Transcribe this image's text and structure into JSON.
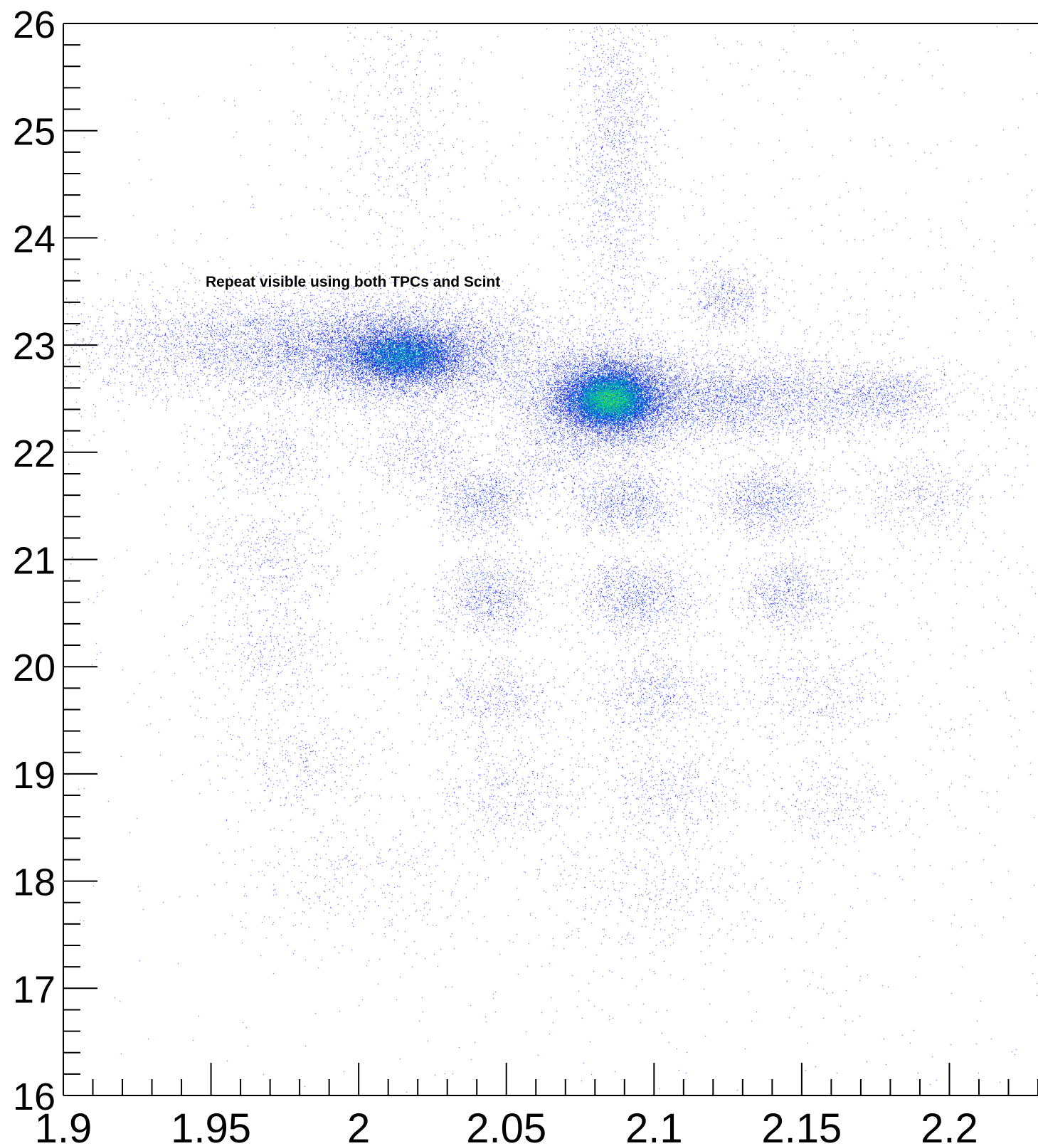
{
  "chart_data": {
    "type": "heatmap",
    "title": "",
    "xlabel": "",
    "ylabel": "",
    "xlim": [
      1.9,
      2.23
    ],
    "ylim": [
      16,
      26
    ],
    "x_ticks": [
      1.9,
      1.95,
      2.0,
      2.05,
      2.1,
      2.15,
      2.2
    ],
    "x_tick_labels": [
      "1.9",
      "1.95",
      "2",
      "2.05",
      "2.1",
      "2.15",
      "2.2"
    ],
    "y_ticks": [
      16,
      17,
      18,
      19,
      20,
      21,
      22,
      23,
      24,
      25,
      26
    ],
    "y_tick_labels": [
      "16",
      "17",
      "18",
      "19",
      "20",
      "21",
      "22",
      "23",
      "24",
      "25",
      "26"
    ],
    "grid": false,
    "annotation": "Repeat visible using both TPCs and Scint",
    "colors": {
      "low": "#6a00e8",
      "mid_low": "#1f2fe0",
      "mid": "#00a0d0",
      "mid_high": "#20e060",
      "high": "#ffd400",
      "peak": "#ff2000",
      "axis": "#000000",
      "background": "#ffffff"
    },
    "clusters": [
      {
        "x": 2.085,
        "y": 22.5,
        "sx": 0.012,
        "sy": 0.22,
        "n": 9000,
        "peak_level": "peak"
      },
      {
        "x": 2.015,
        "y": 22.9,
        "sx": 0.016,
        "sy": 0.2,
        "n": 6000,
        "peak_level": "mid"
      },
      {
        "x": 1.99,
        "y": 23.0,
        "sx": 0.04,
        "sy": 0.25,
        "n": 7000,
        "peak_level": "mid_low"
      },
      {
        "x": 2.12,
        "y": 22.5,
        "sx": 0.035,
        "sy": 0.2,
        "n": 5000,
        "peak_level": "mid_low"
      },
      {
        "x": 2.18,
        "y": 22.55,
        "sx": 0.008,
        "sy": 0.12,
        "n": 500,
        "peak_level": "low"
      },
      {
        "x": 2.125,
        "y": 23.45,
        "sx": 0.007,
        "sy": 0.15,
        "n": 500,
        "peak_level": "low"
      },
      {
        "x": 1.97,
        "y": 22.0,
        "sx": 0.012,
        "sy": 0.2,
        "n": 400,
        "peak_level": "low"
      },
      {
        "x": 2.02,
        "y": 22.0,
        "sx": 0.01,
        "sy": 0.18,
        "n": 450,
        "peak_level": "low"
      },
      {
        "x": 2.065,
        "y": 21.95,
        "sx": 0.01,
        "sy": 0.18,
        "n": 400,
        "peak_level": "low"
      },
      {
        "x": 2.042,
        "y": 21.55,
        "sx": 0.008,
        "sy": 0.16,
        "n": 900,
        "peak_level": "low"
      },
      {
        "x": 2.09,
        "y": 21.55,
        "sx": 0.009,
        "sy": 0.16,
        "n": 1000,
        "peak_level": "low"
      },
      {
        "x": 2.138,
        "y": 21.55,
        "sx": 0.009,
        "sy": 0.16,
        "n": 1000,
        "peak_level": "low"
      },
      {
        "x": 2.19,
        "y": 21.6,
        "sx": 0.012,
        "sy": 0.18,
        "n": 400,
        "peak_level": "low"
      },
      {
        "x": 1.97,
        "y": 21.0,
        "sx": 0.012,
        "sy": 0.25,
        "n": 450,
        "peak_level": "low"
      },
      {
        "x": 2.045,
        "y": 20.65,
        "sx": 0.008,
        "sy": 0.18,
        "n": 900,
        "peak_level": "low"
      },
      {
        "x": 2.093,
        "y": 20.65,
        "sx": 0.01,
        "sy": 0.18,
        "n": 1100,
        "peak_level": "low"
      },
      {
        "x": 2.145,
        "y": 20.68,
        "sx": 0.008,
        "sy": 0.18,
        "n": 700,
        "peak_level": "low"
      },
      {
        "x": 1.97,
        "y": 20.1,
        "sx": 0.012,
        "sy": 0.25,
        "n": 350,
        "peak_level": "low"
      },
      {
        "x": 2.047,
        "y": 19.7,
        "sx": 0.01,
        "sy": 0.2,
        "n": 500,
        "peak_level": "low"
      },
      {
        "x": 2.1,
        "y": 19.75,
        "sx": 0.01,
        "sy": 0.2,
        "n": 600,
        "peak_level": "low"
      },
      {
        "x": 2.155,
        "y": 19.75,
        "sx": 0.012,
        "sy": 0.2,
        "n": 350,
        "peak_level": "low"
      },
      {
        "x": 1.98,
        "y": 19.1,
        "sx": 0.012,
        "sy": 0.25,
        "n": 350,
        "peak_level": "low"
      },
      {
        "x": 2.05,
        "y": 18.8,
        "sx": 0.012,
        "sy": 0.22,
        "n": 400,
        "peak_level": "low"
      },
      {
        "x": 2.105,
        "y": 18.85,
        "sx": 0.012,
        "sy": 0.22,
        "n": 450,
        "peak_level": "low"
      },
      {
        "x": 2.16,
        "y": 18.75,
        "sx": 0.01,
        "sy": 0.2,
        "n": 250,
        "peak_level": "low"
      },
      {
        "x": 2.0,
        "y": 18.0,
        "sx": 0.02,
        "sy": 0.3,
        "n": 350,
        "peak_level": "low"
      },
      {
        "x": 2.1,
        "y": 17.9,
        "sx": 0.02,
        "sy": 0.3,
        "n": 400,
        "peak_level": "low"
      },
      {
        "x": 2.087,
        "y": 24.8,
        "sx": 0.007,
        "sy": 0.8,
        "n": 1500,
        "peak_level": "low"
      },
      {
        "x": 2.015,
        "y": 25.0,
        "sx": 0.012,
        "sy": 0.6,
        "n": 400,
        "peak_level": "low"
      },
      {
        "x": 2.1,
        "y": 21.2,
        "sx": 0.1,
        "sy": 2.5,
        "n": 4000,
        "peak_level": "low"
      }
    ]
  }
}
